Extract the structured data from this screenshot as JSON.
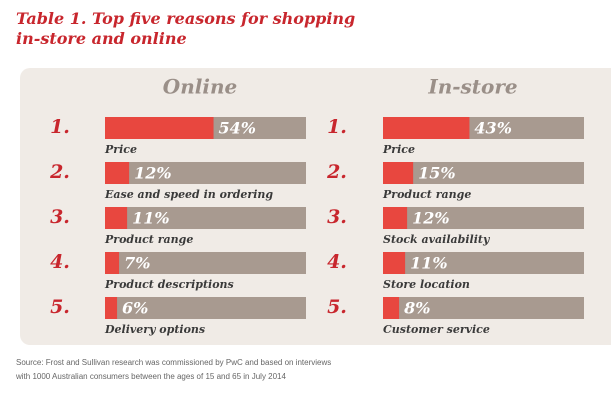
{
  "title": [
    "Table 1. Top five reasons for shopping",
    "in-store and online"
  ],
  "chart_data": [
    {
      "type": "bar",
      "orientation": "horizontal",
      "title": "Online",
      "ranks": [
        "1.",
        "2.",
        "3.",
        "4.",
        "5."
      ],
      "categories": [
        "Price",
        "Ease and speed in ordering",
        "Product range",
        "Product descriptions",
        "Delivery options"
      ],
      "values": [
        54,
        12,
        11,
        7,
        6
      ],
      "value_labels": [
        "54%",
        "12%",
        "11%",
        "7%",
        "6%"
      ],
      "color": "#e8473f",
      "track_color": "#a89a90",
      "xlim": [
        0,
        100
      ]
    },
    {
      "type": "bar",
      "orientation": "horizontal",
      "title": "In-store",
      "ranks": [
        "1.",
        "2.",
        "3.",
        "4.",
        "5."
      ],
      "categories": [
        "Price",
        "Product range",
        "Stock availability",
        "Store location",
        "Customer service"
      ],
      "values": [
        43,
        15,
        12,
        11,
        8
      ],
      "value_labels": [
        "43%",
        "15%",
        "12%",
        "11%",
        "8%"
      ],
      "color": "#e8473f",
      "track_color": "#a89a90",
      "xlim": [
        0,
        100
      ]
    }
  ],
  "source": [
    "Source: Frost and Sullivan research was commissioned by PwC and based on interviews",
    "with 1000 Australian consumers between the ages of 15 and 65 in July 2014"
  ]
}
